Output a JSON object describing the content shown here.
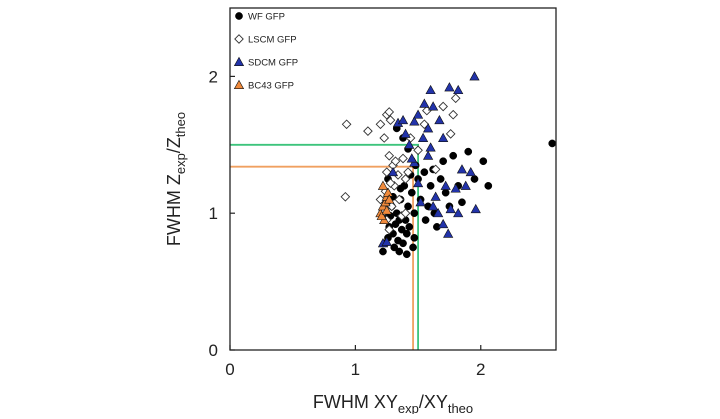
{
  "chart_data": {
    "type": "scatter",
    "title": "",
    "xlabel": {
      "main": "FWHM XY",
      "sub1": "exp",
      "mid": "/XY",
      "sub2": "theo"
    },
    "ylabel": {
      "main": "FWHM Z",
      "sub1": "exp",
      "mid": "/Z",
      "sub2": "theo"
    },
    "xlim": [
      0,
      2.6
    ],
    "ylim": [
      0,
      2.5
    ],
    "x_ticks": [
      "0",
      "1",
      "2"
    ],
    "y_ticks": [
      "0",
      "1",
      "2"
    ],
    "grid": false,
    "legend_position": "top-left",
    "reference_lines": [
      {
        "color": "#3cc47c",
        "x": 1.5,
        "y": 1.5
      },
      {
        "color": "#f0a060",
        "x": 1.46,
        "y": 1.34
      }
    ],
    "series": [
      {
        "name": "WF GFP",
        "marker": "circle",
        "color": "#000000",
        "points": [
          [
            1.22,
            0.72
          ],
          [
            1.24,
            0.78
          ],
          [
            1.26,
            0.82
          ],
          [
            1.27,
            0.9
          ],
          [
            1.28,
            0.98
          ],
          [
            1.29,
            1.05
          ],
          [
            1.3,
            0.85
          ],
          [
            1.31,
            0.75
          ],
          [
            1.32,
            0.92
          ],
          [
            1.33,
            1.0
          ],
          [
            1.34,
            0.8
          ],
          [
            1.35,
            0.95
          ],
          [
            1.36,
            1.1
          ],
          [
            1.37,
            0.88
          ],
          [
            1.38,
            0.78
          ],
          [
            1.39,
            1.2
          ],
          [
            1.4,
            0.95
          ],
          [
            1.41,
            0.85
          ],
          [
            1.42,
            1.05
          ],
          [
            1.43,
            0.9
          ],
          [
            1.44,
            1.28
          ],
          [
            1.45,
            1.15
          ],
          [
            1.46,
            0.75
          ],
          [
            1.47,
            1.0
          ],
          [
            1.48,
            1.35
          ],
          [
            1.5,
            1.25
          ],
          [
            1.52,
            1.1
          ],
          [
            1.55,
            1.3
          ],
          [
            1.58,
            1.05
          ],
          [
            1.6,
            1.2
          ],
          [
            1.63,
            1.0
          ],
          [
            1.65,
            0.9
          ],
          [
            1.68,
            1.25
          ],
          [
            1.7,
            1.38
          ],
          [
            1.72,
            1.15
          ],
          [
            1.75,
            1.05
          ],
          [
            1.78,
            1.42
          ],
          [
            1.82,
            1.2
          ],
          [
            1.85,
            1.08
          ],
          [
            1.9,
            1.45
          ],
          [
            1.95,
            1.25
          ],
          [
            2.02,
            1.38
          ],
          [
            2.06,
            1.2
          ],
          [
            1.33,
            1.62
          ],
          [
            1.38,
            1.55
          ],
          [
            1.42,
            1.47
          ],
          [
            1.36,
            1.18
          ],
          [
            1.3,
            1.12
          ],
          [
            1.26,
            1.25
          ],
          [
            1.24,
            1.0
          ],
          [
            1.56,
            0.95
          ],
          [
            1.62,
            1.32
          ],
          [
            1.35,
            0.72
          ],
          [
            1.41,
            0.7
          ],
          [
            1.47,
            0.82
          ],
          [
            2.57,
            1.51
          ]
        ]
      },
      {
        "name": "LSCM GFP",
        "marker": "diamond-open",
        "color": "#ffffff",
        "points": [
          [
            0.92,
            1.12
          ],
          [
            0.93,
            1.65
          ],
          [
            1.1,
            1.6
          ],
          [
            1.2,
            1.65
          ],
          [
            1.25,
            1.72
          ],
          [
            1.27,
            1.74
          ],
          [
            1.28,
            1.68
          ],
          [
            1.23,
            1.55
          ],
          [
            1.25,
            1.3
          ],
          [
            1.27,
            1.42
          ],
          [
            1.3,
            1.35
          ],
          [
            1.32,
            1.38
          ],
          [
            1.34,
            1.28
          ],
          [
            1.38,
            1.4
          ],
          [
            1.4,
            1.25
          ],
          [
            1.42,
            1.3
          ],
          [
            1.44,
            1.55
          ],
          [
            1.5,
            1.46
          ],
          [
            1.55,
            1.65
          ],
          [
            1.57,
            1.75
          ],
          [
            1.64,
            1.32
          ],
          [
            1.7,
            1.78
          ],
          [
            1.78,
            1.72
          ],
          [
            1.8,
            1.84
          ],
          [
            1.76,
            1.58
          ],
          [
            1.2,
            1.1
          ],
          [
            1.22,
            1.0
          ],
          [
            1.25,
            0.95
          ],
          [
            1.27,
            0.88
          ],
          [
            1.24,
            1.16
          ],
          [
            1.29,
            1.05
          ],
          [
            1.31,
            1.2
          ],
          [
            1.35,
            1.1
          ],
          [
            1.37,
            0.98
          ],
          [
            1.4,
            1.0
          ],
          [
            1.28,
            1.22
          ]
        ]
      },
      {
        "name": "SDCM GFP",
        "marker": "triangle",
        "color": "#2233aa",
        "points": [
          [
            1.3,
            1.3
          ],
          [
            1.34,
            1.66
          ],
          [
            1.4,
            1.58
          ],
          [
            1.43,
            1.5
          ],
          [
            1.47,
            1.37
          ],
          [
            1.5,
            1.22
          ],
          [
            1.5,
            1.72
          ],
          [
            1.55,
            1.8
          ],
          [
            1.58,
            1.62
          ],
          [
            1.6,
            1.48
          ],
          [
            1.62,
            1.05
          ],
          [
            1.64,
            1.12
          ],
          [
            1.66,
            1.0
          ],
          [
            1.7,
            0.92
          ],
          [
            1.72,
            1.2
          ],
          [
            1.74,
            0.85
          ],
          [
            1.76,
            1.03
          ],
          [
            1.8,
            1.18
          ],
          [
            1.82,
            1.0
          ],
          [
            1.85,
            1.32
          ],
          [
            1.7,
            1.55
          ],
          [
            1.62,
            1.78
          ],
          [
            1.67,
            1.68
          ],
          [
            1.75,
            1.92
          ],
          [
            1.82,
            1.9
          ],
          [
            1.95,
            2.0
          ],
          [
            1.88,
            1.2
          ],
          [
            1.92,
            1.3
          ],
          [
            1.96,
            1.03
          ],
          [
            1.47,
            1.67
          ],
          [
            1.58,
            1.42
          ],
          [
            1.38,
            1.68
          ],
          [
            1.45,
            1.4
          ],
          [
            1.52,
            1.08
          ],
          [
            1.54,
            1.55
          ],
          [
            1.6,
            1.9
          ],
          [
            1.22,
            0.78
          ],
          [
            1.25,
            0.79
          ]
        ]
      },
      {
        "name": "BC43 GFP",
        "marker": "triangle",
        "color": "#f08a3c",
        "points": [
          [
            1.2,
            1.0
          ],
          [
            1.22,
            1.05
          ],
          [
            1.24,
            1.08
          ],
          [
            1.25,
            1.12
          ],
          [
            1.26,
            1.15
          ],
          [
            1.23,
            0.95
          ],
          [
            1.21,
            0.98
          ],
          [
            1.25,
            1.02
          ],
          [
            1.27,
            1.1
          ],
          [
            1.22,
            1.2
          ]
        ]
      }
    ]
  }
}
